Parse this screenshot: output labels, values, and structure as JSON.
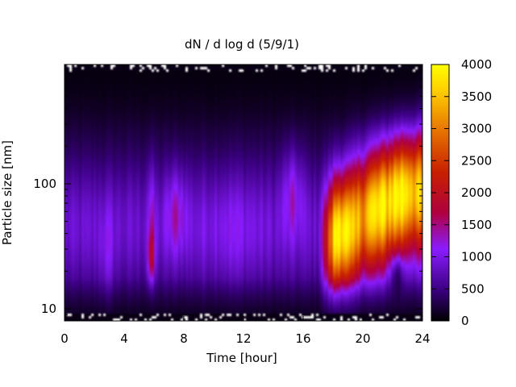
{
  "chart_data": {
    "type": "heatmap",
    "title": "dN / d log d (5/9/1)",
    "xlabel": "Time [hour]",
    "ylabel": "Particle size [nm]",
    "xlim": [
      0,
      24
    ],
    "xticks": [
      0,
      4,
      8,
      12,
      16,
      20,
      24
    ],
    "ylim": [
      8,
      900
    ],
    "yscale": "log",
    "yticks": [
      10,
      100
    ],
    "colorbar": {
      "range": [
        0,
        4000
      ],
      "ticks": [
        0,
        500,
        1000,
        1500,
        2000,
        2500,
        3000,
        3500,
        4000
      ],
      "colormap": [
        "#000000",
        "#3a0080",
        "#8a1cff",
        "#b00020",
        "#e05a00",
        "#ffd000",
        "#ffff00"
      ]
    },
    "grid": false,
    "legend": "none",
    "hotspots": [
      {
        "x": 5.8,
        "y": 25,
        "value": 2100
      },
      {
        "x": 7.5,
        "y": 60,
        "value": 1500
      },
      {
        "x": 15.3,
        "y": 90,
        "value": 1550
      },
      {
        "x": 18.5,
        "y": 40,
        "value": 3200
      },
      {
        "x": 20.5,
        "y": 80,
        "value": 2700
      },
      {
        "x": 22.5,
        "y": 100,
        "value": 3700
      }
    ]
  }
}
